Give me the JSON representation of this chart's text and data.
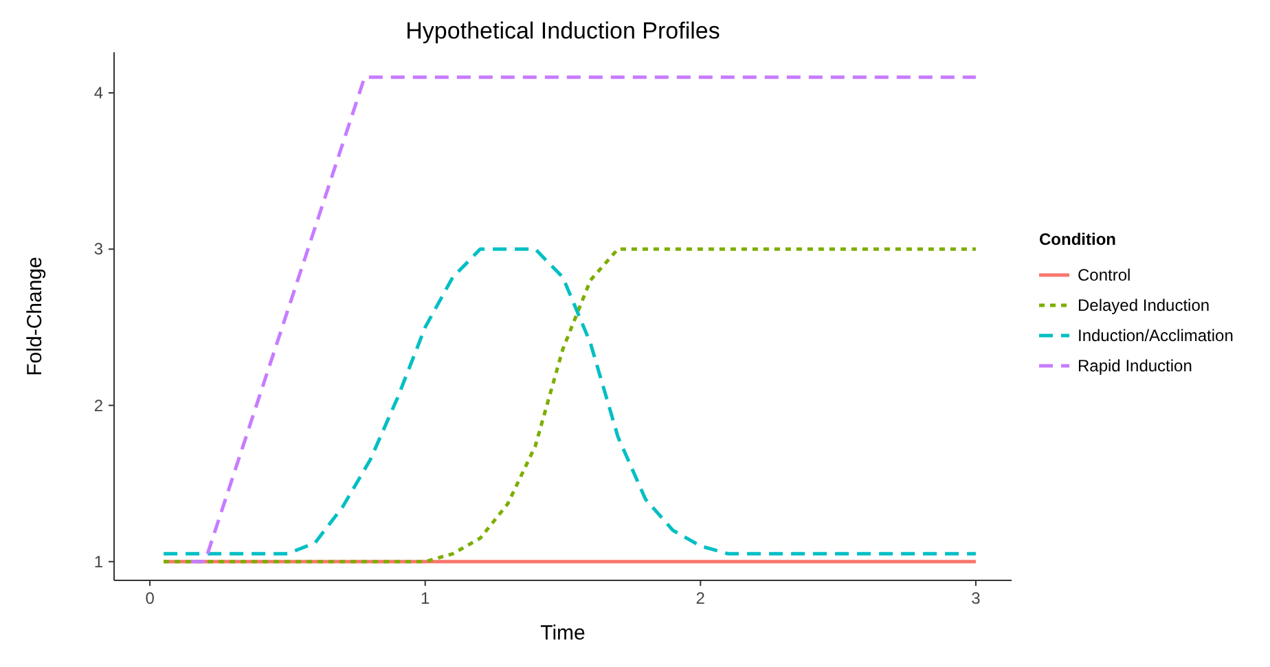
{
  "chart_data": {
    "type": "line",
    "title": "Hypothetical Induction Profiles",
    "xlabel": "Time",
    "ylabel": "Fold-Change",
    "legend_title": "Condition",
    "legend": "right",
    "grid": false,
    "xlim": [
      -0.13,
      3.13
    ],
    "ylim": [
      0.88,
      4.26
    ],
    "xticks": [
      0,
      1,
      2,
      3
    ],
    "yticks": [
      1,
      2,
      3,
      4
    ],
    "series": [
      {
        "name": "Control",
        "color": "#f8766d",
        "line_style": "solid",
        "x": [
          0.05,
          3
        ],
        "values": [
          1,
          1
        ]
      },
      {
        "name": "Delayed Induction",
        "color": "#7cae00",
        "line_style": "dotted",
        "x": [
          0.05,
          1,
          1.1,
          1.2,
          1.3,
          1.4,
          1.5,
          1.6,
          1.7,
          3
        ],
        "values": [
          1,
          1,
          1.05,
          1.15,
          1.37,
          1.74,
          2.36,
          2.8,
          3,
          3
        ]
      },
      {
        "name": "Induction/Acclimation",
        "color": "#00bfc4",
        "line_style": "dashed",
        "x": [
          0.05,
          0.5,
          0.6,
          0.7,
          0.8,
          0.9,
          1,
          1.1,
          1.2,
          1.4,
          1.5,
          1.6,
          1.7,
          1.8,
          1.9,
          2,
          2.1,
          3
        ],
        "values": [
          1.05,
          1.05,
          1.12,
          1.35,
          1.65,
          2.05,
          2.5,
          2.82,
          3,
          3,
          2.82,
          2.4,
          1.8,
          1.4,
          1.2,
          1.1,
          1.05,
          1.05
        ]
      },
      {
        "name": "Rapid Induction",
        "color": "#c77cff",
        "line_style": "dashed",
        "x": [
          0.15,
          0.2,
          0.78,
          3
        ],
        "values": [
          1,
          1,
          4.1,
          4.1
        ]
      }
    ]
  }
}
